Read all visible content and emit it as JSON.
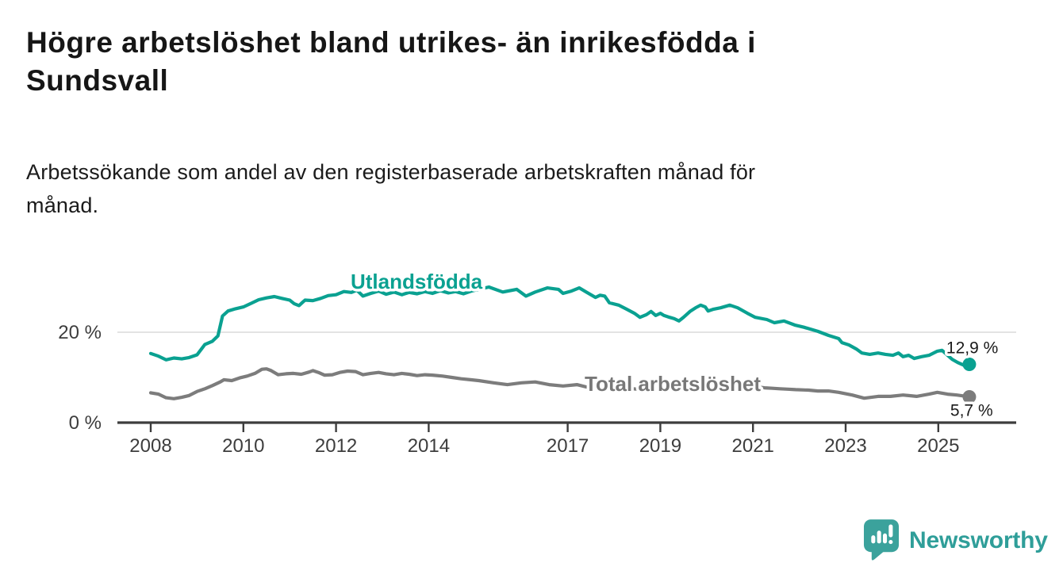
{
  "header": {
    "title_lines": [
      "Högre arbetslöshet bland utrikes- än inrikesfödda i",
      "Sundsvall"
    ],
    "subtitle_lines": [
      "Arbetssökande som andel av den registerbaserade arbetskraften månad för",
      "månad."
    ]
  },
  "chart_data": {
    "type": "line",
    "title": "Högre arbetslöshet bland utrikes- än inrikesfödda i Sundsvall",
    "subtitle": "Arbetssökande som andel av den registerbaserade arbetskraften månad för månad.",
    "xlabel": "",
    "ylabel": "",
    "x_axis": {
      "ticks": [
        2008,
        2010,
        2012,
        2014,
        2017,
        2019,
        2021,
        2023,
        2025
      ],
      "tick_labels": [
        "2008",
        "2010",
        "2012",
        "2014",
        "2017",
        "2019",
        "2021",
        "2023",
        "2025"
      ],
      "range": [
        2007.3,
        2026.7
      ]
    },
    "y_axis": {
      "ticks": [
        0,
        20
      ],
      "tick_labels": [
        "0 %",
        "20 %"
      ],
      "ylim": [
        0,
        35
      ],
      "unit": "%"
    },
    "grid": "horizontal-at-20-only",
    "legend_position": "inline-labels-on-lines",
    "series": [
      {
        "name": "Utlandsfödda",
        "color": "#0aa191",
        "end_label": "12,9 %",
        "end_value": 12.9,
        "points": [
          [
            2008.0,
            15.3
          ],
          [
            2008.17,
            14.7
          ],
          [
            2008.33,
            13.9
          ],
          [
            2008.5,
            14.3
          ],
          [
            2008.67,
            14.1
          ],
          [
            2008.83,
            14.4
          ],
          [
            2009.0,
            15.0
          ],
          [
            2009.17,
            17.3
          ],
          [
            2009.33,
            18.0
          ],
          [
            2009.45,
            19.2
          ],
          [
            2009.55,
            23.6
          ],
          [
            2009.67,
            24.7
          ],
          [
            2009.83,
            25.2
          ],
          [
            2010.0,
            25.6
          ],
          [
            2010.17,
            26.4
          ],
          [
            2010.33,
            27.2
          ],
          [
            2010.5,
            27.6
          ],
          [
            2010.67,
            27.9
          ],
          [
            2010.83,
            27.5
          ],
          [
            2011.0,
            27.1
          ],
          [
            2011.1,
            26.3
          ],
          [
            2011.2,
            25.9
          ],
          [
            2011.33,
            27.1
          ],
          [
            2011.5,
            27.0
          ],
          [
            2011.67,
            27.5
          ],
          [
            2011.83,
            28.1
          ],
          [
            2012.0,
            28.3
          ],
          [
            2012.17,
            29.0
          ],
          [
            2012.33,
            28.8
          ],
          [
            2012.45,
            29.3
          ],
          [
            2012.58,
            28.0
          ],
          [
            2012.75,
            28.6
          ],
          [
            2012.92,
            29.1
          ],
          [
            2013.08,
            28.4
          ],
          [
            2013.25,
            28.9
          ],
          [
            2013.42,
            28.3
          ],
          [
            2013.58,
            28.8
          ],
          [
            2013.75,
            28.5
          ],
          [
            2013.92,
            29.0
          ],
          [
            2014.08,
            28.6
          ],
          [
            2014.25,
            29.2
          ],
          [
            2014.42,
            28.7
          ],
          [
            2014.58,
            29.0
          ],
          [
            2014.75,
            28.5
          ],
          [
            2014.92,
            29.1
          ],
          [
            2015.08,
            29.5
          ],
          [
            2015.3,
            30.0
          ],
          [
            2015.6,
            28.9
          ],
          [
            2015.9,
            29.5
          ],
          [
            2016.1,
            28.0
          ],
          [
            2016.3,
            28.9
          ],
          [
            2016.56,
            29.8
          ],
          [
            2016.8,
            29.5
          ],
          [
            2016.9,
            28.6
          ],
          [
            2017.08,
            29.1
          ],
          [
            2017.25,
            29.8
          ],
          [
            2017.4,
            28.9
          ],
          [
            2017.6,
            27.7
          ],
          [
            2017.7,
            28.2
          ],
          [
            2017.8,
            28.0
          ],
          [
            2017.9,
            26.5
          ],
          [
            2018.1,
            26.0
          ],
          [
            2018.27,
            25.1
          ],
          [
            2018.44,
            24.2
          ],
          [
            2018.56,
            23.3
          ],
          [
            2018.7,
            23.9
          ],
          [
            2018.8,
            24.6
          ],
          [
            2018.9,
            23.7
          ],
          [
            2019.0,
            24.2
          ],
          [
            2019.08,
            23.7
          ],
          [
            2019.2,
            23.3
          ],
          [
            2019.3,
            23.0
          ],
          [
            2019.4,
            22.5
          ],
          [
            2019.5,
            23.3
          ],
          [
            2019.64,
            24.6
          ],
          [
            2019.76,
            25.4
          ],
          [
            2019.87,
            26.0
          ],
          [
            2019.97,
            25.6
          ],
          [
            2020.03,
            24.7
          ],
          [
            2020.15,
            25.1
          ],
          [
            2020.3,
            25.4
          ],
          [
            2020.5,
            26.0
          ],
          [
            2020.67,
            25.4
          ],
          [
            2020.88,
            24.2
          ],
          [
            2021.05,
            23.3
          ],
          [
            2021.3,
            22.8
          ],
          [
            2021.46,
            22.1
          ],
          [
            2021.67,
            22.5
          ],
          [
            2021.9,
            21.6
          ],
          [
            2022.1,
            21.1
          ],
          [
            2022.4,
            20.2
          ],
          [
            2022.63,
            19.3
          ],
          [
            2022.85,
            18.6
          ],
          [
            2022.92,
            17.7
          ],
          [
            2023.07,
            17.2
          ],
          [
            2023.23,
            16.3
          ],
          [
            2023.35,
            15.4
          ],
          [
            2023.52,
            15.1
          ],
          [
            2023.7,
            15.4
          ],
          [
            2023.86,
            15.1
          ],
          [
            2024.02,
            14.9
          ],
          [
            2024.14,
            15.4
          ],
          [
            2024.24,
            14.6
          ],
          [
            2024.36,
            14.9
          ],
          [
            2024.48,
            14.2
          ],
          [
            2024.64,
            14.6
          ],
          [
            2024.8,
            14.9
          ],
          [
            2024.98,
            15.8
          ],
          [
            2025.08,
            16.0
          ],
          [
            2025.2,
            14.9
          ],
          [
            2025.3,
            14.0
          ],
          [
            2025.42,
            13.3
          ],
          [
            2025.55,
            12.7
          ],
          [
            2025.67,
            12.9
          ]
        ]
      },
      {
        "name": "Total arbetslöshet",
        "color": "#7c7c7c",
        "end_label": "5,7 %",
        "end_value": 5.7,
        "points": [
          [
            2008.0,
            6.6
          ],
          [
            2008.17,
            6.3
          ],
          [
            2008.33,
            5.5
          ],
          [
            2008.5,
            5.3
          ],
          [
            2008.67,
            5.6
          ],
          [
            2008.83,
            6.0
          ],
          [
            2009.0,
            6.9
          ],
          [
            2009.17,
            7.5
          ],
          [
            2009.33,
            8.2
          ],
          [
            2009.5,
            9.0
          ],
          [
            2009.58,
            9.5
          ],
          [
            2009.75,
            9.3
          ],
          [
            2009.92,
            9.9
          ],
          [
            2010.08,
            10.3
          ],
          [
            2010.25,
            10.9
          ],
          [
            2010.4,
            11.8
          ],
          [
            2010.5,
            11.9
          ],
          [
            2010.6,
            11.5
          ],
          [
            2010.75,
            10.6
          ],
          [
            2010.92,
            10.8
          ],
          [
            2011.08,
            10.9
          ],
          [
            2011.25,
            10.7
          ],
          [
            2011.42,
            11.2
          ],
          [
            2011.5,
            11.5
          ],
          [
            2011.62,
            11.1
          ],
          [
            2011.75,
            10.5
          ],
          [
            2011.92,
            10.6
          ],
          [
            2012.08,
            11.1
          ],
          [
            2012.25,
            11.4
          ],
          [
            2012.42,
            11.3
          ],
          [
            2012.58,
            10.6
          ],
          [
            2012.75,
            10.9
          ],
          [
            2012.92,
            11.1
          ],
          [
            2013.08,
            10.8
          ],
          [
            2013.25,
            10.6
          ],
          [
            2013.42,
            10.9
          ],
          [
            2013.58,
            10.7
          ],
          [
            2013.75,
            10.4
          ],
          [
            2013.92,
            10.6
          ],
          [
            2014.08,
            10.5
          ],
          [
            2014.3,
            10.3
          ],
          [
            2014.5,
            10.0
          ],
          [
            2014.7,
            9.7
          ],
          [
            2014.9,
            9.5
          ],
          [
            2015.08,
            9.3
          ],
          [
            2015.4,
            8.8
          ],
          [
            2015.7,
            8.4
          ],
          [
            2016.0,
            8.8
          ],
          [
            2016.3,
            9.0
          ],
          [
            2016.6,
            8.4
          ],
          [
            2016.9,
            8.1
          ],
          [
            2017.2,
            8.4
          ],
          [
            2017.4,
            7.9
          ],
          [
            2017.65,
            7.9
          ],
          [
            2017.9,
            7.8
          ],
          [
            2018.1,
            7.7
          ],
          [
            2018.3,
            7.6
          ],
          [
            2018.5,
            7.4
          ],
          [
            2018.77,
            7.5
          ],
          [
            2018.92,
            7.6
          ],
          [
            2019.08,
            7.7
          ],
          [
            2019.25,
            7.6
          ],
          [
            2019.42,
            7.5
          ],
          [
            2019.58,
            7.6
          ],
          [
            2019.75,
            7.7
          ],
          [
            2019.92,
            7.9
          ],
          [
            2020.08,
            8.2
          ],
          [
            2020.25,
            8.6
          ],
          [
            2020.42,
            8.5
          ],
          [
            2020.58,
            8.3
          ],
          [
            2020.75,
            8.1
          ],
          [
            2020.92,
            8.0
          ],
          [
            2021.08,
            7.9
          ],
          [
            2021.25,
            7.7
          ],
          [
            2021.42,
            7.6
          ],
          [
            2021.58,
            7.5
          ],
          [
            2021.75,
            7.4
          ],
          [
            2021.92,
            7.3
          ],
          [
            2022.2,
            7.2
          ],
          [
            2022.4,
            7.0
          ],
          [
            2022.63,
            7.0
          ],
          [
            2022.85,
            6.7
          ],
          [
            2023.14,
            6.1
          ],
          [
            2023.4,
            5.4
          ],
          [
            2023.7,
            5.8
          ],
          [
            2023.97,
            5.8
          ],
          [
            2024.24,
            6.1
          ],
          [
            2024.53,
            5.8
          ],
          [
            2024.8,
            6.3
          ],
          [
            2024.98,
            6.7
          ],
          [
            2025.2,
            6.3
          ],
          [
            2025.4,
            6.1
          ],
          [
            2025.55,
            5.9
          ],
          [
            2025.67,
            5.7
          ]
        ]
      }
    ],
    "style": {
      "grid_color": "#dadada",
      "axis_color": "#3d3d3d",
      "tick_label_color": "#3d3d3d",
      "value_label_color": "#1a1a1a",
      "series_label_colors": [
        "#0aa191",
        "#787878"
      ]
    }
  },
  "branding": {
    "logo_text": "Newsworthy",
    "logo_icon": "bar-chart-speech-bubble-icon",
    "logo_color": "#3ba29c",
    "logo_text_color": "#2f9e99"
  }
}
